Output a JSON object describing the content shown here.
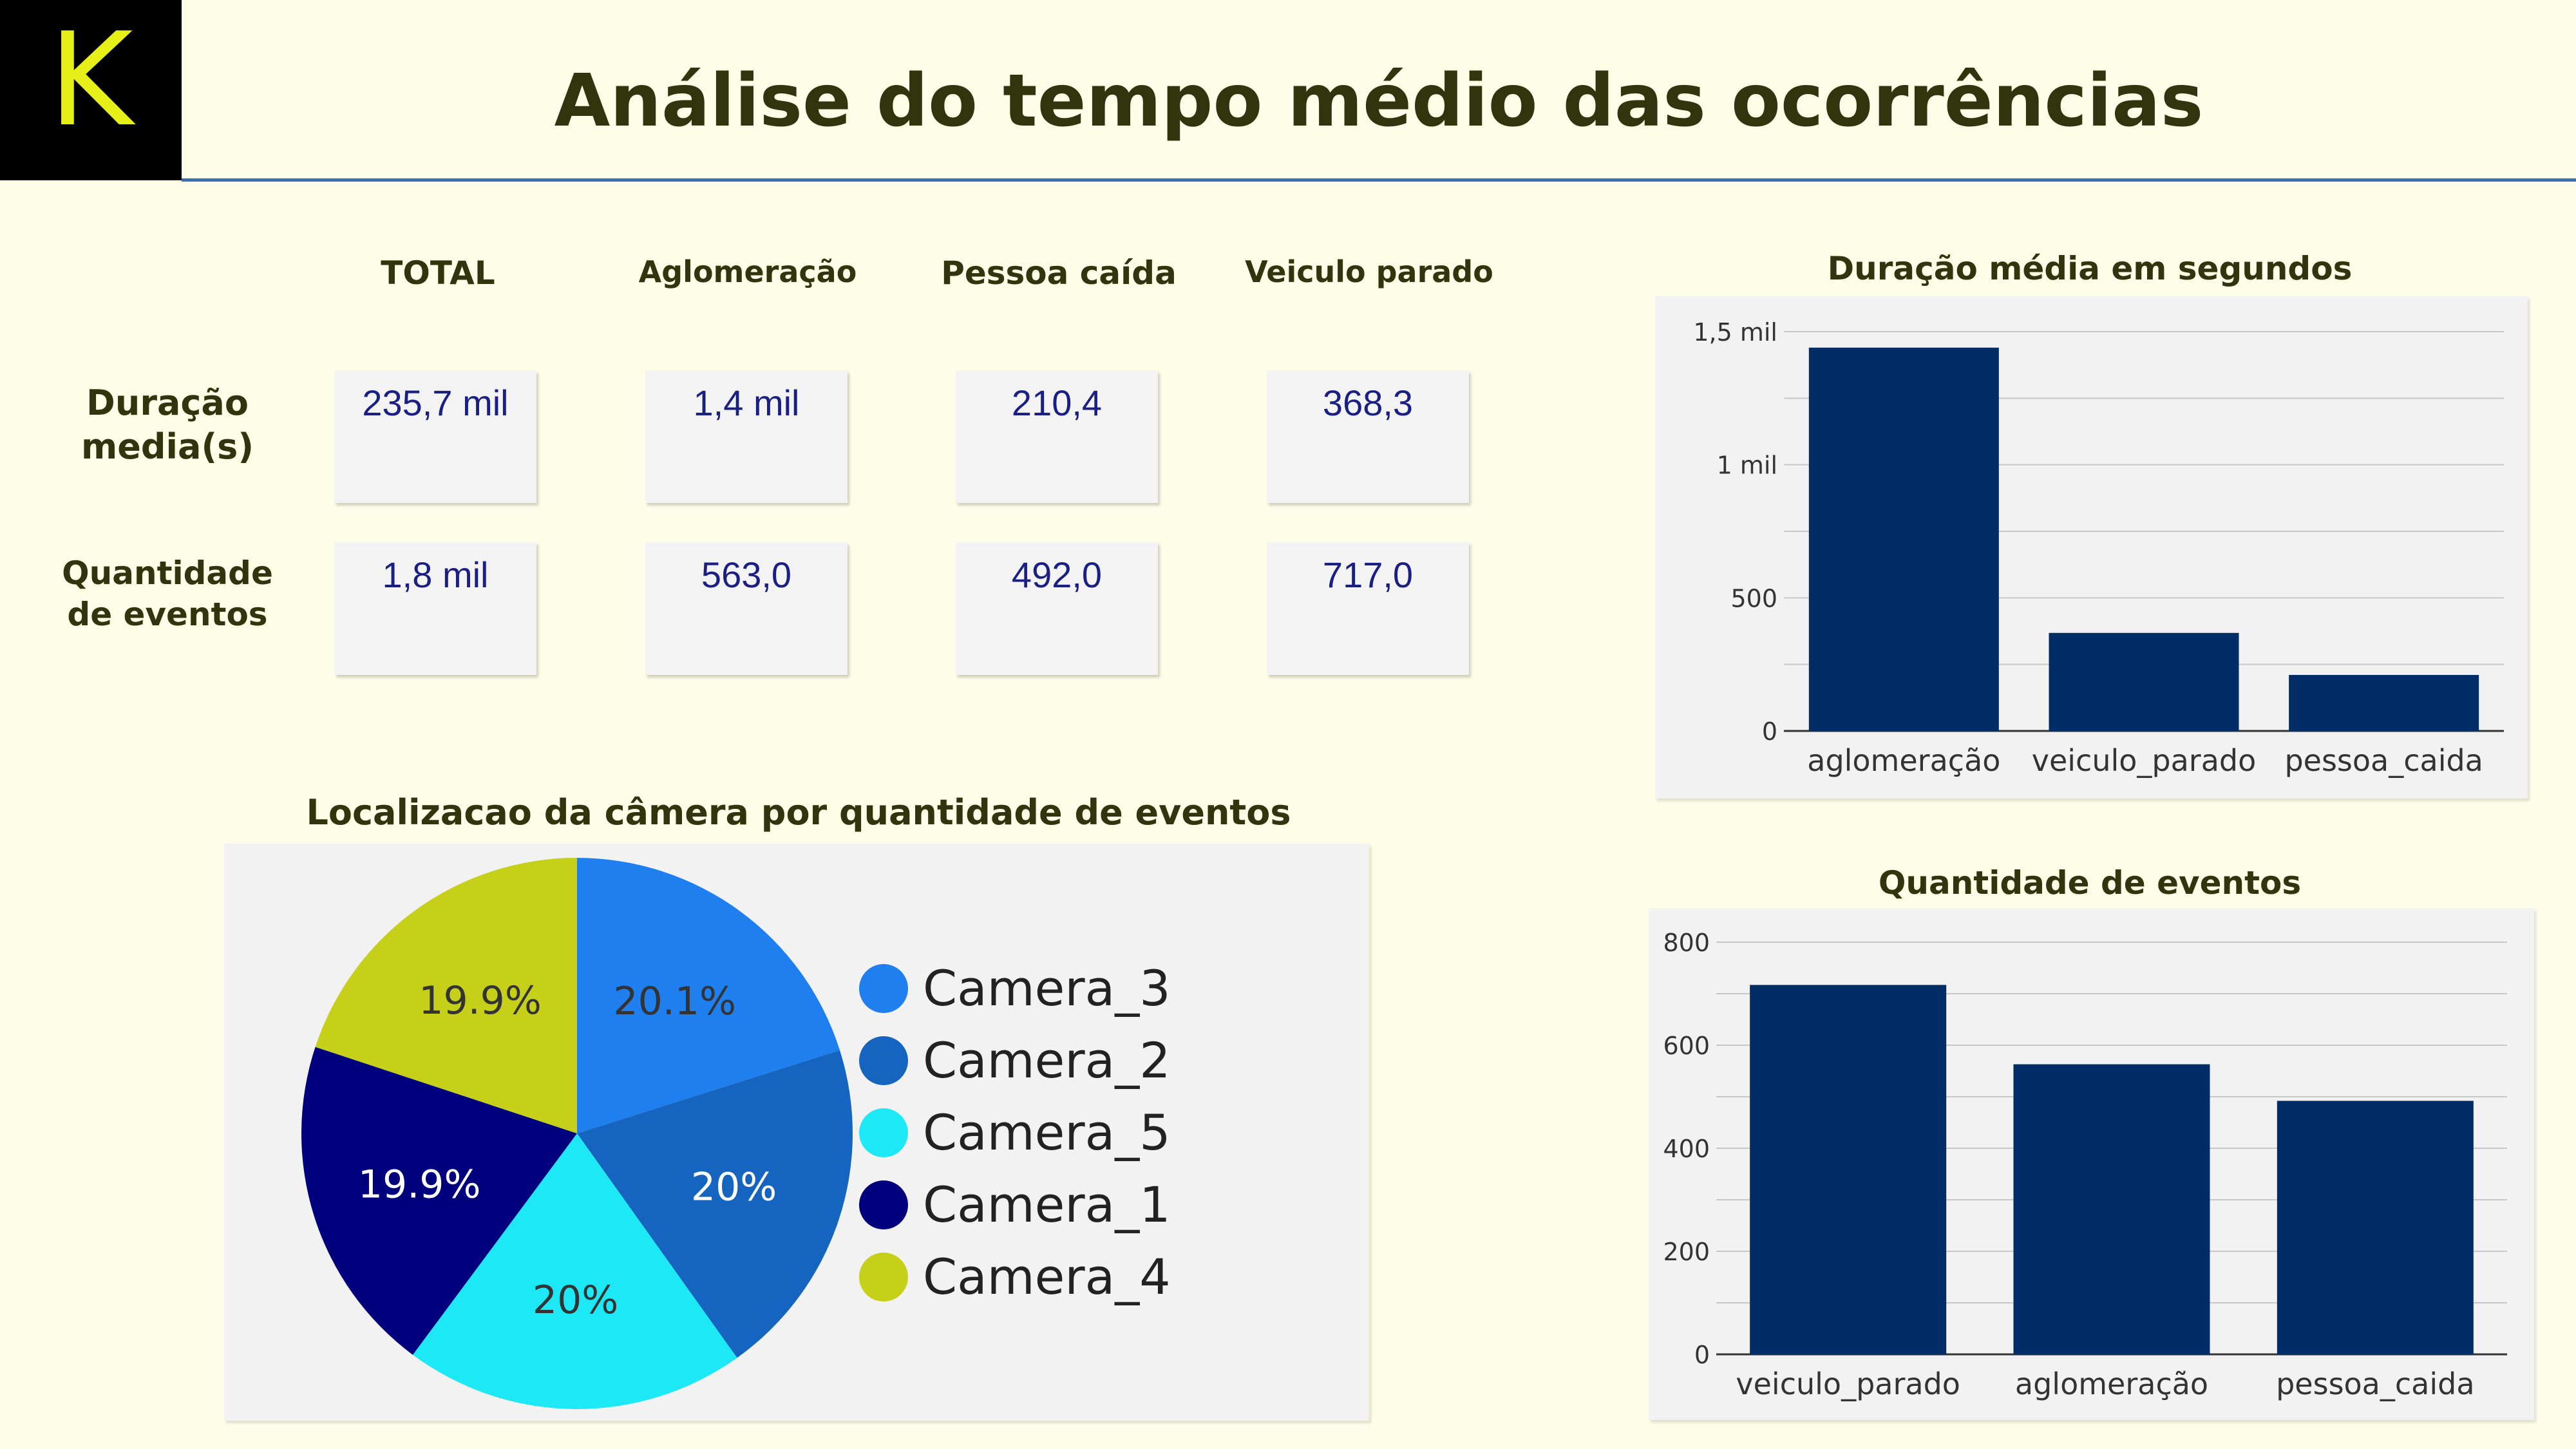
{
  "logo": {
    "letter": "K"
  },
  "title": "Análise do tempo médio das ocorrências",
  "summary": {
    "columns": [
      "TOTAL",
      "Aglomeração",
      "Pessoa caída",
      "Veiculo parado"
    ],
    "rows": [
      {
        "label_line1": "Duração",
        "label_line2": "media(s)",
        "values": [
          "235,7 mil",
          "1,4 mil",
          "210,4",
          "368,3"
        ]
      },
      {
        "label_line1": "Quantidade",
        "label_line2": "de eventos",
        "values": [
          "1,8 mil",
          "563,0",
          "492,0",
          "717,0"
        ]
      }
    ]
  },
  "colors": {
    "bar": "#002d66",
    "camera_3": "#1f7fef",
    "camera_2": "#1565c0",
    "camera_5": "#1de9f6",
    "camera_1": "#00007f",
    "camera_4": "#c6d018"
  },
  "chart_data": [
    {
      "type": "bar",
      "title": "Duração média em segundos",
      "categories": [
        "aglomeração",
        "veiculo_parado",
        "pessoa_caida"
      ],
      "values": [
        1440,
        368.3,
        210.4
      ],
      "ylim": [
        0,
        1500
      ],
      "yticks": [
        0,
        500,
        1000,
        1500
      ],
      "ytick_labels": [
        "0",
        "500",
        "1 mil",
        "1,5 mil"
      ],
      "grid": true
    },
    {
      "type": "bar",
      "title": "Quantidade de eventos",
      "categories": [
        "veiculo_parado",
        "aglomeração",
        "pessoa_caida"
      ],
      "values": [
        717,
        563,
        492
      ],
      "ylim": [
        0,
        800
      ],
      "yticks": [
        0,
        200,
        400,
        600,
        800
      ],
      "ytick_labels": [
        "0",
        "200",
        "400",
        "600",
        "800"
      ],
      "grid": true
    },
    {
      "type": "pie",
      "title": "Localizacao da câmera por quantidade de eventos",
      "legend_position": "right",
      "slices": [
        {
          "name": "Camera_3",
          "value": 20.1,
          "label": "20.1%"
        },
        {
          "name": "Camera_2",
          "value": 20.0,
          "label": "20%"
        },
        {
          "name": "Camera_5",
          "value": 20.0,
          "label": "20%"
        },
        {
          "name": "Camera_1",
          "value": 19.9,
          "label": "19.9%"
        },
        {
          "name": "Camera_4",
          "value": 19.9,
          "label": "19.9%"
        }
      ]
    }
  ]
}
